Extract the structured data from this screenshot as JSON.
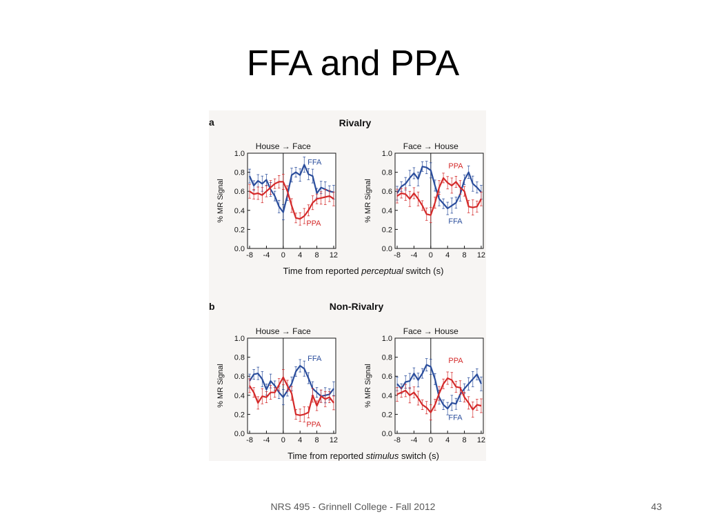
{
  "slide": {
    "title": "FFA and PPA",
    "footer": "NRS 495 - Grinnell College - Fall 2012",
    "page_number": "43"
  },
  "figure": {
    "section_a": {
      "letter": "a",
      "title": "Rivalry",
      "xlabel_prefix": "Time from reported ",
      "xlabel_emph": "perceptual",
      "xlabel_suffix": " switch (s)"
    },
    "section_b": {
      "letter": "b",
      "title": "Non-Rivalry",
      "xlabel_prefix": "Time from reported ",
      "xlabel_emph": "stimulus",
      "xlabel_suffix": " switch (s)"
    },
    "arrow": "→"
  },
  "colors": {
    "FFA": "#2a4d9c",
    "PPA": "#d42a2a",
    "axis": "#111111"
  },
  "chart_data": [
    {
      "id": "a-left",
      "type": "line",
      "section": "a",
      "title_from": "House",
      "title_to": "Face",
      "ylabel": "% MR Signal",
      "ylim": [
        0,
        1.0
      ],
      "yticks": [
        "0.0",
        "0.2",
        "0.4",
        "0.6",
        "0.8",
        "1.0"
      ],
      "xticks": [
        "-8",
        "-4",
        "0",
        "4",
        "8",
        "12"
      ],
      "xlim": [
        -8.5,
        12.5
      ],
      "switch_at": 0,
      "series": [
        {
          "name": "FFA",
          "x": [
            -8,
            -7,
            -6,
            -5,
            -4,
            -3,
            -2,
            -1,
            0,
            1,
            2,
            3,
            4,
            5,
            6,
            7,
            8,
            9,
            10,
            11,
            12
          ],
          "values": [
            0.76,
            0.66,
            0.71,
            0.68,
            0.72,
            0.62,
            0.55,
            0.44,
            0.38,
            0.56,
            0.77,
            0.8,
            0.77,
            0.88,
            0.78,
            0.76,
            0.58,
            0.64,
            0.62,
            0.6,
            0.59
          ]
        },
        {
          "name": "PPA",
          "x": [
            -8,
            -7,
            -6,
            -5,
            -4,
            -3,
            -2,
            -1,
            0,
            1,
            2,
            3,
            4,
            5,
            6,
            7,
            8,
            9,
            10,
            11,
            12
          ],
          "values": [
            0.6,
            0.57,
            0.58,
            0.56,
            0.6,
            0.64,
            0.68,
            0.7,
            0.7,
            0.6,
            0.45,
            0.32,
            0.31,
            0.34,
            0.4,
            0.48,
            0.52,
            0.53,
            0.54,
            0.55,
            0.52
          ]
        }
      ],
      "labels": [
        {
          "series": "FFA",
          "text": "FFA",
          "at": [
            5.8,
            0.88
          ]
        },
        {
          "series": "PPA",
          "text": "PPA",
          "at": [
            5.5,
            0.24
          ]
        }
      ]
    },
    {
      "id": "a-right",
      "type": "line",
      "section": "a",
      "title_from": "Face",
      "title_to": "House",
      "ylabel": "% MR Signal",
      "ylim": [
        0,
        1.0
      ],
      "yticks": [
        "0.0",
        "0.2",
        "0.4",
        "0.6",
        "0.8",
        "1.0"
      ],
      "xticks": [
        "-8",
        "-4",
        "0",
        "4",
        "8",
        "12"
      ],
      "xlim": [
        -8.5,
        12.5
      ],
      "switch_at": 0,
      "series": [
        {
          "name": "FFA",
          "x": [
            -8,
            -7,
            -6,
            -5,
            -4,
            -3,
            -2,
            -1,
            0,
            1,
            2,
            3,
            4,
            5,
            6,
            7,
            8,
            9,
            10,
            11,
            12
          ],
          "values": [
            0.58,
            0.65,
            0.68,
            0.74,
            0.79,
            0.73,
            0.86,
            0.85,
            0.82,
            0.66,
            0.52,
            0.47,
            0.42,
            0.45,
            0.48,
            0.57,
            0.72,
            0.8,
            0.68,
            0.64,
            0.59
          ]
        },
        {
          "name": "PPA",
          "x": [
            -8,
            -7,
            -6,
            -5,
            -4,
            -3,
            -2,
            -1,
            0,
            1,
            2,
            3,
            4,
            5,
            6,
            7,
            8,
            9,
            10,
            11,
            12
          ],
          "values": [
            0.55,
            0.58,
            0.57,
            0.52,
            0.58,
            0.52,
            0.45,
            0.36,
            0.35,
            0.48,
            0.64,
            0.74,
            0.69,
            0.66,
            0.7,
            0.64,
            0.6,
            0.44,
            0.43,
            0.44,
            0.52
          ]
        }
      ],
      "labels": [
        {
          "series": "PPA",
          "text": "PPA",
          "at": [
            4.2,
            0.84
          ]
        },
        {
          "series": "FFA",
          "text": "FFA",
          "at": [
            4.2,
            0.26
          ]
        }
      ]
    },
    {
      "id": "b-left",
      "type": "line",
      "section": "b",
      "title_from": "House",
      "title_to": "Face",
      "ylabel": "% MR Signal",
      "ylim": [
        0,
        1.0
      ],
      "yticks": [
        "0.0",
        "0.2",
        "0.4",
        "0.6",
        "0.8",
        "1.0"
      ],
      "xticks": [
        "-8",
        "-4",
        "0",
        "4",
        "8",
        "12"
      ],
      "xlim": [
        -8.5,
        12.5
      ],
      "switch_at": 0,
      "series": [
        {
          "name": "FFA",
          "x": [
            -8,
            -7,
            -6,
            -5,
            -4,
            -3,
            -2,
            -1,
            0,
            1,
            2,
            3,
            4,
            5,
            6,
            7,
            8,
            9,
            10,
            11,
            12
          ],
          "values": [
            0.55,
            0.62,
            0.63,
            0.57,
            0.46,
            0.55,
            0.5,
            0.43,
            0.38,
            0.45,
            0.52,
            0.65,
            0.71,
            0.68,
            0.58,
            0.47,
            0.43,
            0.39,
            0.4,
            0.41,
            0.47
          ]
        },
        {
          "name": "PPA",
          "x": [
            -8,
            -7,
            -6,
            -5,
            -4,
            -3,
            -2,
            -1,
            0,
            1,
            2,
            3,
            4,
            5,
            6,
            7,
            8,
            9,
            10,
            11,
            12
          ],
          "values": [
            0.5,
            0.43,
            0.32,
            0.39,
            0.38,
            0.43,
            0.43,
            0.51,
            0.59,
            0.5,
            0.42,
            0.2,
            0.19,
            0.2,
            0.22,
            0.4,
            0.29,
            0.39,
            0.36,
            0.38,
            0.32
          ]
        }
      ],
      "labels": [
        {
          "series": "FFA",
          "text": "FFA",
          "at": [
            5.8,
            0.76
          ]
        },
        {
          "series": "PPA",
          "text": "PPA",
          "at": [
            5.5,
            0.07
          ]
        }
      ]
    },
    {
      "id": "b-right",
      "type": "line",
      "section": "b",
      "title_from": "Face",
      "title_to": "House",
      "ylabel": "% MR Signal",
      "ylim": [
        0,
        1.0
      ],
      "yticks": [
        "0.0",
        "0.2",
        "0.4",
        "0.6",
        "0.8",
        "1.0"
      ],
      "xticks": [
        "-8",
        "-4",
        "0",
        "4",
        "8",
        "12"
      ],
      "xlim": [
        -8.5,
        12.5
      ],
      "switch_at": 0,
      "series": [
        {
          "name": "FFA",
          "x": [
            -8,
            -7,
            -6,
            -5,
            -4,
            -3,
            -2,
            -1,
            0,
            1,
            2,
            3,
            4,
            5,
            6,
            7,
            8,
            9,
            10,
            11,
            12
          ],
          "values": [
            0.52,
            0.47,
            0.54,
            0.55,
            0.63,
            0.56,
            0.63,
            0.72,
            0.7,
            0.57,
            0.38,
            0.3,
            0.26,
            0.32,
            0.31,
            0.41,
            0.47,
            0.52,
            0.57,
            0.62,
            0.52
          ]
        },
        {
          "name": "PPA",
          "x": [
            -8,
            -7,
            -6,
            -5,
            -4,
            -3,
            -2,
            -1,
            0,
            1,
            2,
            3,
            4,
            5,
            6,
            7,
            8,
            9,
            10,
            11,
            12
          ],
          "values": [
            0.41,
            0.43,
            0.45,
            0.4,
            0.43,
            0.37,
            0.3,
            0.27,
            0.22,
            0.3,
            0.42,
            0.52,
            0.58,
            0.56,
            0.49,
            0.48,
            0.38,
            0.32,
            0.25,
            0.3,
            0.29
          ]
        }
      ],
      "labels": [
        {
          "series": "PPA",
          "text": "PPA",
          "at": [
            4.2,
            0.74
          ]
        },
        {
          "series": "FFA",
          "text": "FFA",
          "at": [
            4.2,
            0.14
          ]
        }
      ]
    }
  ]
}
